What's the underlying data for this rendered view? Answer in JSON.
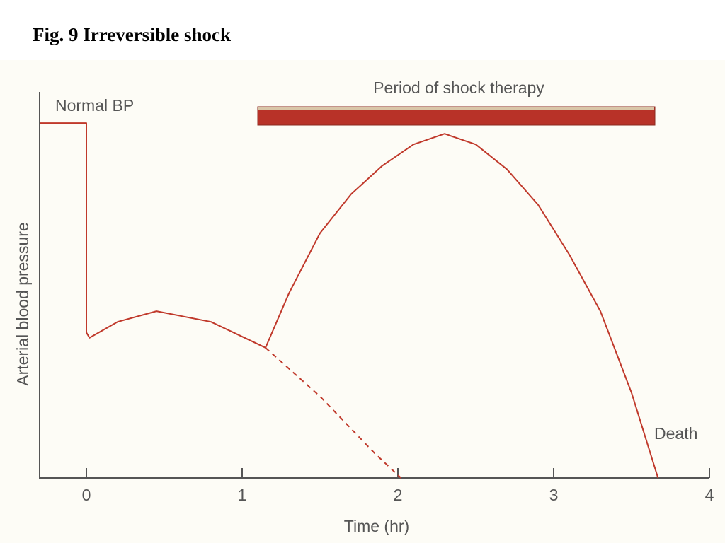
{
  "chart_data": {
    "type": "line",
    "title": "Fig. 9 Irreversible shock",
    "x_label": "Time (hr)",
    "y_label": "Arterial blood pressure",
    "xlim": [
      -0.3,
      4
    ],
    "xticks": [
      0,
      1,
      2,
      3,
      4
    ],
    "ylim": [
      0,
      110
    ],
    "series": [
      {
        "color": "#c0392b",
        "dashed": false,
        "x": [
          -0.3,
          0,
          0,
          0.02,
          0.2,
          0.45,
          0.8,
          1.15,
          1.3,
          1.5,
          1.7,
          1.9,
          2.1,
          2.3,
          2.5,
          2.7,
          2.9,
          3.1,
          3.3,
          3.5,
          3.67
        ],
        "values": [
          100,
          100,
          41,
          39.5,
          44,
          47,
          44,
          36.7,
          52,
          69,
          80,
          88,
          94,
          97,
          94,
          87,
          77,
          63,
          47,
          24,
          0
        ]
      },
      {
        "color": "#c0392b",
        "dashed": true,
        "x": [
          1.15,
          1.5,
          1.85,
          2.02
        ],
        "values": [
          36.7,
          23,
          7,
          0
        ]
      }
    ],
    "annotations": [
      {
        "text": "Normal BP"
      },
      {
        "text": "Period of shock therapy",
        "x": [
          1.1,
          3.65
        ],
        "color": "#b83228"
      },
      {
        "text": "Death"
      }
    ]
  }
}
